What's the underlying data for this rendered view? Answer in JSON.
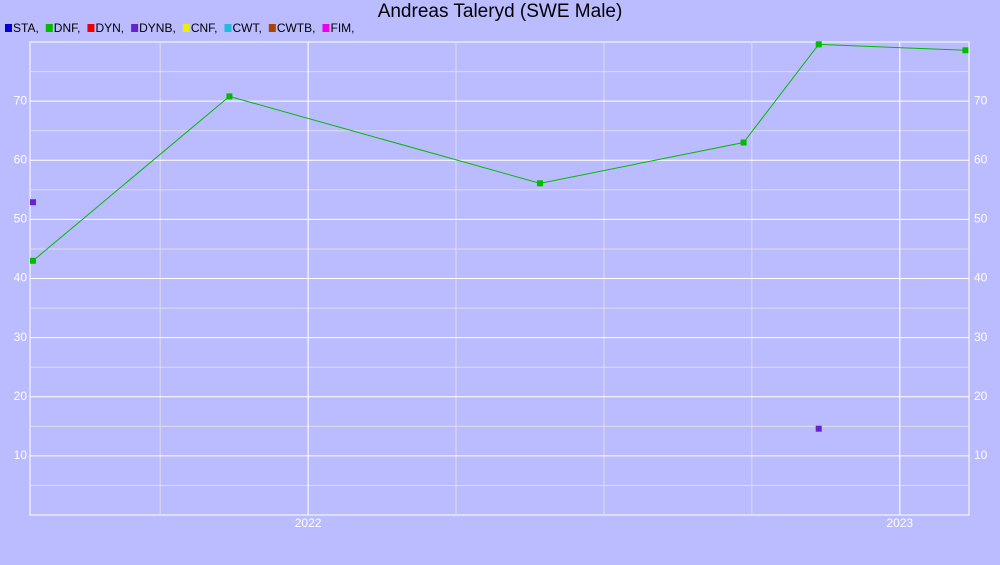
{
  "chart_data": {
    "type": "line",
    "title": "Andreas Taleryd (SWE Male)",
    "x": [
      2021.535,
      2021.867,
      2022.392,
      2022.736,
      2022.863,
      2023.111
    ],
    "series": [
      {
        "name": "STA,",
        "color": "#0000dd",
        "values": [
          null,
          null,
          null,
          null,
          null,
          null
        ]
      },
      {
        "name": "DNF,",
        "color": "#00bb00",
        "values": [
          43,
          70.8,
          56.1,
          63,
          79.6,
          78.6
        ]
      },
      {
        "name": "DYN,",
        "color": "#ee0000",
        "values": [
          null,
          null,
          null,
          null,
          null,
          null
        ]
      },
      {
        "name": "DYNB,",
        "color": "#6622cc",
        "values": [
          52.9,
          null,
          null,
          null,
          14.6,
          null
        ]
      },
      {
        "name": "CNF,",
        "color": "#eeee00",
        "values": [
          null,
          null,
          null,
          null,
          null,
          null
        ]
      },
      {
        "name": "CWT,",
        "color": "#22bbdd",
        "values": [
          null,
          null,
          null,
          null,
          null,
          null
        ]
      },
      {
        "name": "CWTB,",
        "color": "#aa4400",
        "values": [
          null,
          null,
          null,
          null,
          null,
          null
        ]
      },
      {
        "name": "FIM,",
        "color": "#ee00ee",
        "values": [
          null,
          null,
          null,
          null,
          null,
          null
        ]
      }
    ],
    "xlim": [
      2021.53,
      2023.117
    ],
    "xticks": [
      2022,
      2023
    ],
    "ylim": [
      0,
      80
    ],
    "yticks": [
      10,
      20,
      30,
      40,
      50,
      60,
      70
    ],
    "grid": true
  }
}
